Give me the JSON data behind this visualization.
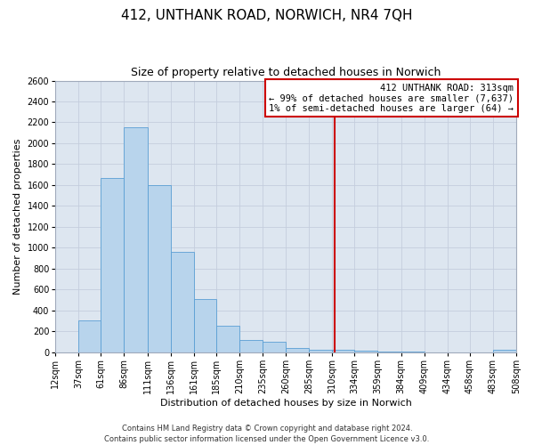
{
  "title": "412, UNTHANK ROAD, NORWICH, NR4 7QH",
  "subtitle": "Size of property relative to detached houses in Norwich",
  "xlabel": "Distribution of detached houses by size in Norwich",
  "ylabel": "Number of detached properties",
  "bar_color": "#b8d4ec",
  "bar_edge_color": "#5a9fd4",
  "background_color": "#dde6f0",
  "bin_edges": [
    12,
    37,
    61,
    86,
    111,
    136,
    161,
    185,
    210,
    235,
    260,
    285,
    310,
    334,
    359,
    384,
    409,
    434,
    458,
    483,
    508
  ],
  "bar_heights": [
    0,
    300,
    1670,
    2150,
    1600,
    960,
    510,
    250,
    120,
    100,
    40,
    20,
    20,
    10,
    5,
    5,
    0,
    0,
    0,
    20
  ],
  "property_size": 313,
  "vline_color": "#cc0000",
  "annotation_title": "412 UNTHANK ROAD: 313sqm",
  "annotation_line1": "← 99% of detached houses are smaller (7,637)",
  "annotation_line2": "1% of semi-detached houses are larger (64) →",
  "annotation_box_color": "#cc0000",
  "ylim": [
    0,
    2600
  ],
  "yticks": [
    0,
    200,
    400,
    600,
    800,
    1000,
    1200,
    1400,
    1600,
    1800,
    2000,
    2200,
    2400,
    2600
  ],
  "footer_line1": "Contains HM Land Registry data © Crown copyright and database right 2024.",
  "footer_line2": "Contains public sector information licensed under the Open Government Licence v3.0.",
  "grid_color": "#c4cedd",
  "title_fontsize": 11,
  "subtitle_fontsize": 9,
  "tick_label_fontsize": 7,
  "ylabel_fontsize": 8,
  "xlabel_fontsize": 8,
  "footer_fontsize": 6,
  "annotation_fontsize": 7.5
}
